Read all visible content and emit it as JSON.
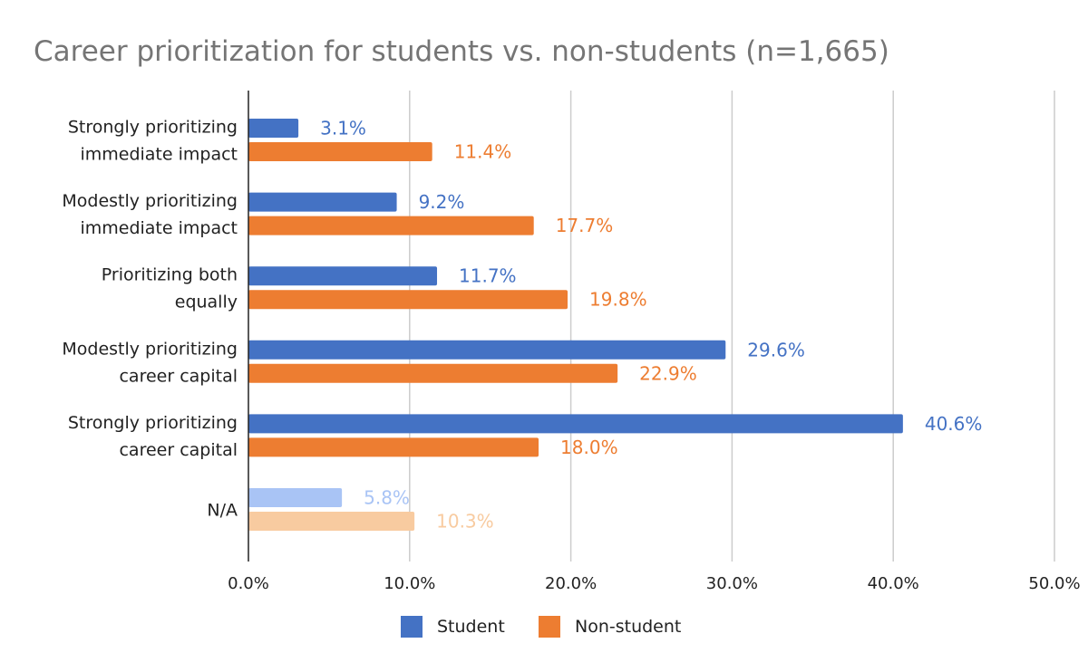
{
  "chart_data": {
    "type": "bar",
    "orientation": "horizontal",
    "title": "Career prioritization for students vs. non-students (n=1,665)",
    "categories": [
      [
        "Strongly prioritizing",
        "immediate impact"
      ],
      [
        "Modestly prioritizing",
        "immediate impact"
      ],
      [
        "Prioritizing both",
        "equally"
      ],
      [
        "Modestly prioritizing",
        "career capital"
      ],
      [
        "Strongly prioritizing",
        "career capital"
      ],
      [
        "N/A"
      ]
    ],
    "series": [
      {
        "name": "Student",
        "color": "#4472C4",
        "faded_color": "#A9C4F5",
        "values": [
          3.1,
          9.2,
          11.7,
          29.6,
          40.6,
          5.8
        ],
        "labels": [
          "3.1%",
          "9.2%",
          "11.7%",
          "29.6%",
          "40.6%",
          "5.8%"
        ]
      },
      {
        "name": "Non-student",
        "color": "#ED7D31",
        "faded_color": "#F8CBA0",
        "values": [
          11.4,
          17.7,
          19.8,
          22.9,
          18.0,
          10.3
        ],
        "labels": [
          "11.4%",
          "17.7%",
          "19.8%",
          "22.9%",
          "18.0%",
          "10.3%"
        ]
      }
    ],
    "faded_categories": [
      5
    ],
    "xlim": [
      0,
      50
    ],
    "x_ticks": [
      0,
      10,
      20,
      30,
      40,
      50
    ],
    "x_tick_labels": [
      "0.0%",
      "10.0%",
      "20.0%",
      "30.0%",
      "40.0%",
      "50.0%"
    ],
    "grid": "vertical",
    "legend_position": "bottom",
    "xlabel": "",
    "ylabel": ""
  }
}
